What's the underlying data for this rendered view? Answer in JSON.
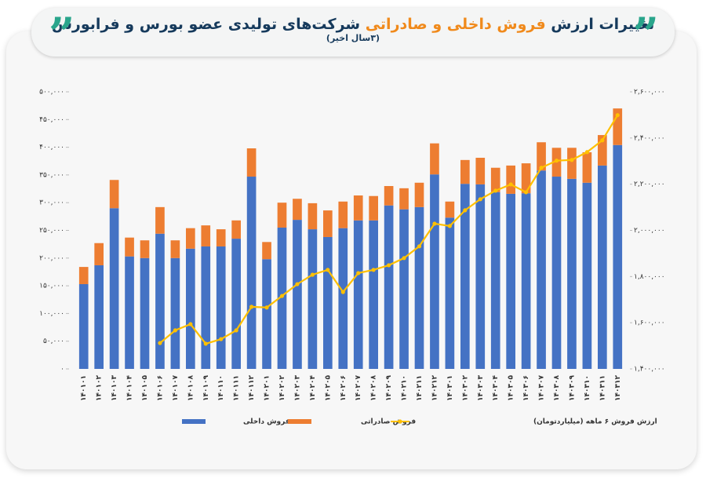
{
  "chart_data": {
    "type": "bar",
    "title_parts": [
      "تغییرات ارزش",
      "فروش داخلی و صادراتی",
      "شرکت‌های تولیدی عضو بورس و فرابورس"
    ],
    "subtitle": "(۳سال اخیر)",
    "categories": [
      "۱۴۰۱۰۱",
      "۱۴۰۱۰۲",
      "۱۴۰۱۰۳",
      "۱۴۰۱۰۴",
      "۱۴۰۱۰۵",
      "۱۴۰۱۰۶",
      "۱۴۰۱۰۷",
      "۱۴۰۱۰۸",
      "۱۴۰۱۰۹",
      "۱۴۰۱۱۰",
      "۱۴۰۱۱۱",
      "۱۴۰۱۱۲",
      "۱۴۰۲۰۱",
      "۱۴۰۲۰۲",
      "۱۴۰۲۰۳",
      "۱۴۰۲۰۴",
      "۱۴۰۲۰۵",
      "۱۴۰۲۰۶",
      "۱۴۰۲۰۷",
      "۱۴۰۲۰۸",
      "۱۴۰۲۰۹",
      "۱۴۰۲۱۰",
      "۱۴۰۲۱۱",
      "۱۴۰۲۱۲",
      "۱۴۰۳۰۱",
      "۱۴۰۳۰۲",
      "۱۴۰۳۰۳",
      "۱۴۰۳۰۴",
      "۱۴۰۳۰۵",
      "۱۴۰۳۰۶",
      "۱۴۰۳۰۷",
      "۱۴۰۳۰۸",
      "۱۴۰۳۰۹",
      "۱۴۰۳۱۰",
      "۱۴۰۳۱۱",
      "۱۴۰۳۱۲"
    ],
    "series": [
      {
        "name": "فروش داخلی",
        "color": "#4472c4",
        "stack": true,
        "values": [
          153000,
          187000,
          290000,
          203000,
          200000,
          244000,
          200000,
          217000,
          221000,
          221000,
          235000,
          347000,
          198000,
          255000,
          269000,
          252000,
          238000,
          254000,
          268000,
          268000,
          295000,
          288000,
          292000,
          351000,
          273000,
          334000,
          333000,
          319000,
          316000,
          317000,
          358000,
          347000,
          343000,
          336000,
          367000,
          404000
        ]
      },
      {
        "name": "فروش صادراتی",
        "color": "#ed7d31",
        "stack": true,
        "values": [
          31000,
          40000,
          51000,
          34000,
          32000,
          48000,
          32000,
          37000,
          38000,
          31000,
          33000,
          51000,
          31000,
          45000,
          38000,
          47000,
          48000,
          48000,
          45000,
          44000,
          35000,
          38000,
          44000,
          56000,
          29000,
          43000,
          48000,
          44000,
          51000,
          54000,
          51000,
          52000,
          56000,
          55000,
          55000,
          66000
        ]
      },
      {
        "name": "ارزش فروش ۶ ماهه (میلیاردتومان)",
        "color": "#ffc000",
        "type": "line",
        "axis": "y2",
        "values": [
          null,
          null,
          null,
          null,
          null,
          1512000,
          1567000,
          1594000,
          1509000,
          1529000,
          1567000,
          1669000,
          1666000,
          1716000,
          1767000,
          1808000,
          1829000,
          1733000,
          1815000,
          1829000,
          1849000,
          1880000,
          1931000,
          2029000,
          2019000,
          2087000,
          2135000,
          2172000,
          2199000,
          2165000,
          2271000,
          2302000,
          2305000,
          2339000,
          2390000,
          2499000
        ]
      }
    ],
    "ylim": [
      0,
      500000
    ],
    "yticks": [
      {
        "value": 0,
        "label": "٠"
      },
      {
        "value": 50000,
        "label": "۵۰,۰۰۰"
      },
      {
        "value": 100000,
        "label": "۱۰۰,۰۰۰"
      },
      {
        "value": 150000,
        "label": "۱۵۰,۰۰۰"
      },
      {
        "value": 200000,
        "label": "۲۰۰,۰۰۰"
      },
      {
        "value": 250000,
        "label": "۲۵۰,۰۰۰"
      },
      {
        "value": 300000,
        "label": "۳۰۰,۰۰۰"
      },
      {
        "value": 350000,
        "label": "۳۵۰,۰۰۰"
      },
      {
        "value": 400000,
        "label": "۴۰۰,۰۰۰"
      },
      {
        "value": 450000,
        "label": "۴۵۰,۰۰۰"
      },
      {
        "value": 500000,
        "label": "۵۰۰,۰۰۰"
      }
    ],
    "y2lim": [
      1400000,
      2600000
    ],
    "y2ticks": [
      {
        "value": 1400000,
        "label": "۱,۴۰۰,۰۰۰"
      },
      {
        "value": 1600000,
        "label": "۱,۶۰۰,۰۰۰"
      },
      {
        "value": 1800000,
        "label": "۱,۸۰۰,۰۰۰"
      },
      {
        "value": 2000000,
        "label": "۲,۰۰۰,۰۰۰"
      },
      {
        "value": 2200000,
        "label": "۲,۲۰۰,۰۰۰"
      },
      {
        "value": 2400000,
        "label": "۲,۴۰۰,۰۰۰"
      },
      {
        "value": 2600000,
        "label": "۲,۶۰۰,۰۰۰"
      }
    ]
  }
}
